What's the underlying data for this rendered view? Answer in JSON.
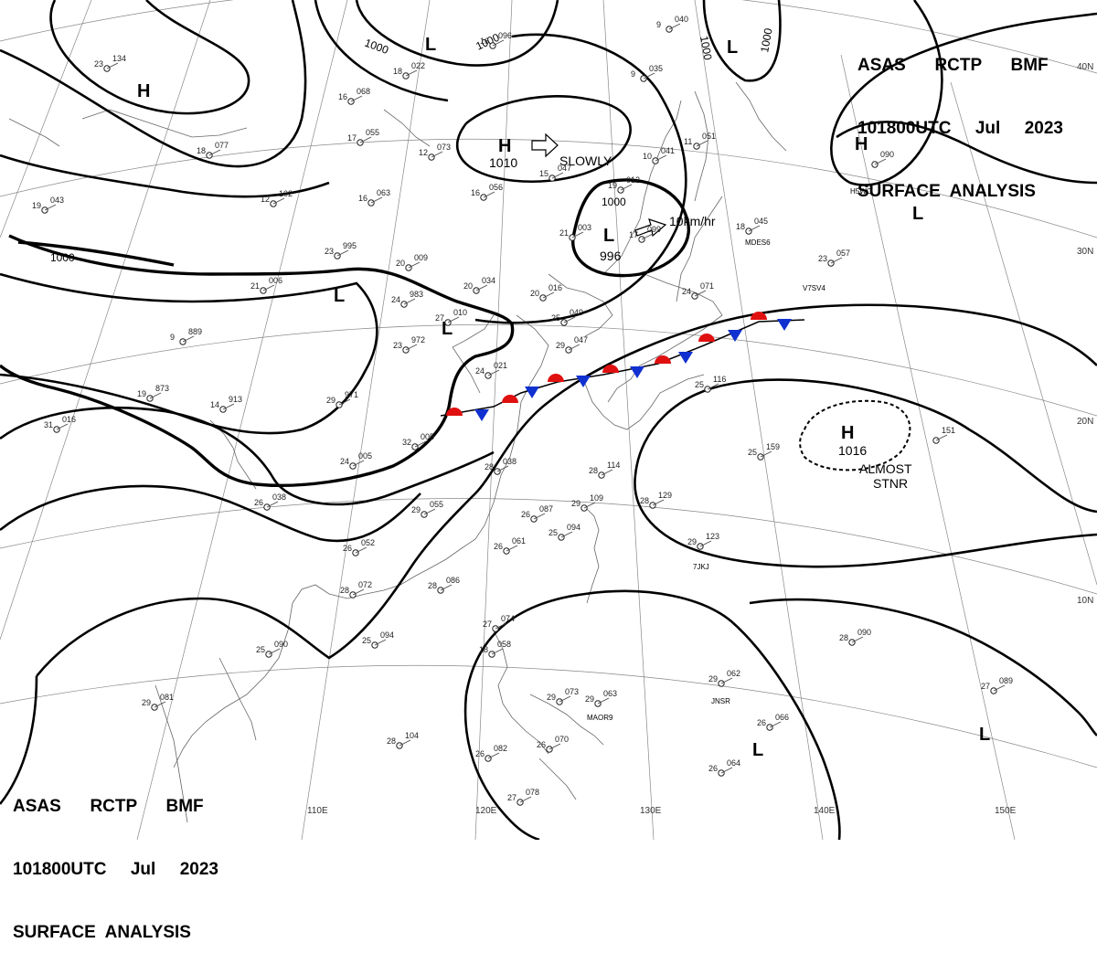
{
  "header": {
    "line1": "ASAS      RCTP      BMF",
    "line2": "101800UTC     Jul     2023",
    "line3": "SURFACE  ANALYSIS"
  },
  "colors": {
    "high": "#1030d0",
    "low": "#e01010",
    "isobar": "#000000",
    "warm_front": "#e01010",
    "cold_front": "#1030d0"
  },
  "latitude_labels": [
    "40N",
    "30N",
    "20N",
    "10N"
  ],
  "longitude_labels": [
    "110E",
    "120E",
    "130E",
    "140E",
    "150E"
  ],
  "isobar_labels": [
    "1000",
    "1000",
    "1000",
    "1000",
    "1000",
    "1000"
  ],
  "systems": [
    {
      "type": "H",
      "pressure": ""
    },
    {
      "type": "H",
      "pressure": "1010"
    },
    {
      "type": "H",
      "pressure": ""
    },
    {
      "type": "H",
      "pressure": "1016"
    },
    {
      "type": "L",
      "pressure": ""
    },
    {
      "type": "L",
      "pressure": ""
    },
    {
      "type": "L",
      "pressure": "996"
    },
    {
      "type": "L",
      "pressure": ""
    },
    {
      "type": "L",
      "pressure": ""
    },
    {
      "type": "L",
      "pressure": ""
    },
    {
      "type": "L",
      "pressure": ""
    },
    {
      "type": "L",
      "pressure": ""
    }
  ],
  "motion_notes": [
    "SLOWLY",
    "10km/hr",
    "ALMOST",
    "STNR"
  ],
  "station_ids": [
    "MDES6",
    "V7SV4",
    "H5WC",
    "7JKJ",
    "JNSR",
    "MAOR9"
  ],
  "stations": [
    {
      "t": "23",
      "p": "134"
    },
    {
      "t": "18",
      "p": "022"
    },
    {
      "t": "16",
      "p": "096"
    },
    {
      "t": "16",
      "p": "068"
    },
    {
      "t": "17",
      "p": "055"
    },
    {
      "t": "18",
      "p": "077"
    },
    {
      "t": "12",
      "p": "073"
    },
    {
      "t": "15",
      "p": "047"
    },
    {
      "t": "16",
      "p": "056"
    },
    {
      "t": "12",
      "p": "102"
    },
    {
      "t": "16",
      "p": "063"
    },
    {
      "t": "19",
      "p": "043"
    },
    {
      "t": "23",
      "p": "995"
    },
    {
      "t": "20",
      "p": "009"
    },
    {
      "t": "20",
      "p": "034"
    },
    {
      "t": "20",
      "p": "016"
    },
    {
      "t": "24",
      "p": "983"
    },
    {
      "t": "27",
      "p": "010"
    },
    {
      "t": "21",
      "p": "006"
    },
    {
      "t": "9",
      "p": "889"
    },
    {
      "t": "23",
      "p": "972"
    },
    {
      "t": "25",
      "p": "049"
    },
    {
      "t": "29",
      "p": "047"
    },
    {
      "t": "24",
      "p": "021"
    },
    {
      "t": "19",
      "p": "873"
    },
    {
      "t": "14",
      "p": "913"
    },
    {
      "t": "29",
      "p": "971"
    },
    {
      "t": "31",
      "p": "016"
    },
    {
      "t": "32",
      "p": "005"
    },
    {
      "t": "24",
      "p": "005"
    },
    {
      "t": "28",
      "p": "038"
    },
    {
      "t": "26",
      "p": "038"
    },
    {
      "t": "29",
      "p": "055"
    },
    {
      "t": "26",
      "p": "087"
    },
    {
      "t": "25",
      "p": "094"
    },
    {
      "t": "26",
      "p": "061"
    },
    {
      "t": "26",
      "p": "052"
    },
    {
      "t": "28",
      "p": "072"
    },
    {
      "t": "28",
      "p": "086"
    },
    {
      "t": "28",
      "p": "114"
    },
    {
      "t": "29",
      "p": "109"
    },
    {
      "t": "28",
      "p": "129"
    },
    {
      "t": "29",
      "p": "123"
    },
    {
      "t": "25",
      "p": "159"
    },
    {
      "t": "25",
      "p": "116"
    },
    {
      "t": "24",
      "p": "071"
    },
    {
      "t": "18",
      "p": "045"
    },
    {
      "t": "23",
      "p": "057"
    },
    {
      "t": "9",
      "p": "040"
    },
    {
      "t": "9",
      "p": "035"
    },
    {
      "t": "10",
      "p": "041"
    },
    {
      "t": "11",
      "p": "051"
    },
    {
      "t": "19",
      "p": "012"
    },
    {
      "t": "21",
      "p": "003"
    },
    {
      "t": "17",
      "p": "099"
    },
    {
      "t": "25",
      "p": "090"
    },
    {
      "t": "29",
      "p": "081"
    },
    {
      "t": "25",
      "p": "094"
    },
    {
      "t": "27",
      "p": "074"
    },
    {
      "t": "18",
      "p": "058"
    },
    {
      "t": "29",
      "p": "073"
    },
    {
      "t": "29",
      "p": "063"
    },
    {
      "t": "28",
      "p": "104"
    },
    {
      "t": "26",
      "p": "082"
    },
    {
      "t": "26",
      "p": "070"
    },
    {
      "t": "27",
      "p": "078"
    },
    {
      "t": "29",
      "p": "062"
    },
    {
      "t": "26",
      "p": "066"
    },
    {
      "t": "26",
      "p": "064"
    },
    {
      "t": "28",
      "p": "090"
    },
    {
      "t": "27",
      "p": "089"
    },
    {
      "t": "",
      "p": "151"
    },
    {
      "t": "",
      "p": "090"
    }
  ]
}
